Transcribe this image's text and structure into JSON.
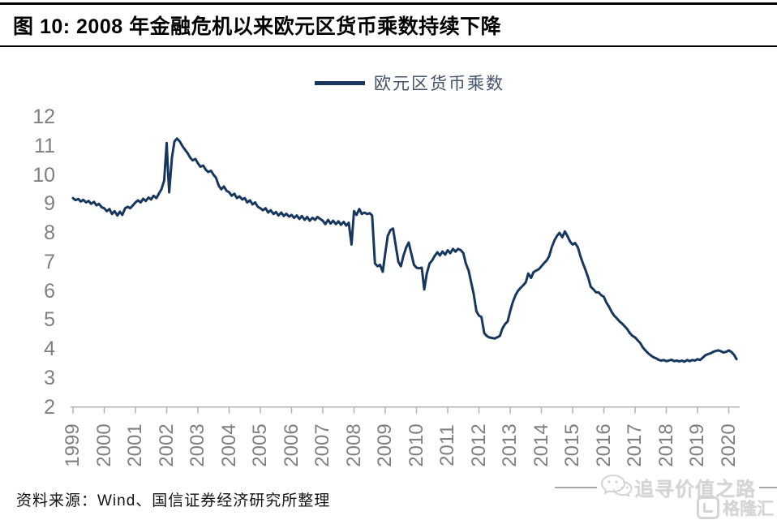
{
  "title": {
    "text": "图 10: 2008 年金融危机以来欧元区货币乘数持续下降"
  },
  "legend": {
    "label": "欧元区货币乘数"
  },
  "source": {
    "text": "资料来源：Wind、国信证券经济研究所整理"
  },
  "watermark": {
    "text": "追寻价值之路",
    "logo_text": "格隆汇"
  },
  "colors": {
    "line": "#17375e",
    "legend_text": "#44546a",
    "axis": "#b3b3b3",
    "tick_label": "#7f7f7f",
    "title_text": "#000000",
    "watermark": "#d4d4d4"
  },
  "chart_data": {
    "type": "line",
    "title": "图 10: 2008 年金融危机以来欧元区货币乘数持续下降",
    "xlabel": "",
    "ylabel": "",
    "legend_position": "top-center",
    "grid": false,
    "xlim": [
      1998.9,
      2020.45
    ],
    "ylim": [
      2,
      12
    ],
    "x_ticks": [
      1999,
      2000,
      2001,
      2002,
      2003,
      2004,
      2005,
      2006,
      2007,
      2008,
      2009,
      2010,
      2011,
      2012,
      2013,
      2014,
      2015,
      2016,
      2017,
      2018,
      2019,
      2020
    ],
    "y_ticks": [
      2,
      3,
      4,
      5,
      6,
      7,
      8,
      9,
      10,
      11,
      12
    ],
    "series": [
      {
        "name": "欧元区货币乘数",
        "points": [
          [
            1999.0,
            9.2
          ],
          [
            1999.08,
            9.13
          ],
          [
            1999.17,
            9.17
          ],
          [
            1999.25,
            9.08
          ],
          [
            1999.33,
            9.14
          ],
          [
            1999.42,
            9.05
          ],
          [
            1999.5,
            9.1
          ],
          [
            1999.58,
            9.0
          ],
          [
            1999.67,
            9.07
          ],
          [
            1999.75,
            8.95
          ],
          [
            1999.83,
            9.0
          ],
          [
            1999.92,
            8.88
          ],
          [
            2000.0,
            8.85
          ],
          [
            2000.08,
            8.75
          ],
          [
            2000.17,
            8.82
          ],
          [
            2000.25,
            8.65
          ],
          [
            2000.33,
            8.75
          ],
          [
            2000.42,
            8.6
          ],
          [
            2000.5,
            8.73
          ],
          [
            2000.58,
            8.62
          ],
          [
            2000.67,
            8.85
          ],
          [
            2000.75,
            8.9
          ],
          [
            2000.83,
            8.85
          ],
          [
            2000.92,
            8.95
          ],
          [
            2001.0,
            9.05
          ],
          [
            2001.08,
            9.12
          ],
          [
            2001.17,
            9.05
          ],
          [
            2001.25,
            9.18
          ],
          [
            2001.33,
            9.1
          ],
          [
            2001.42,
            9.22
          ],
          [
            2001.5,
            9.15
          ],
          [
            2001.58,
            9.28
          ],
          [
            2001.67,
            9.2
          ],
          [
            2001.75,
            9.35
          ],
          [
            2001.83,
            9.5
          ],
          [
            2001.92,
            9.8
          ],
          [
            2002.0,
            11.1
          ],
          [
            2002.04,
            10.2
          ],
          [
            2002.08,
            9.4
          ],
          [
            2002.17,
            10.6
          ],
          [
            2002.25,
            11.15
          ],
          [
            2002.33,
            11.25
          ],
          [
            2002.42,
            11.15
          ],
          [
            2002.5,
            11.0
          ],
          [
            2002.58,
            10.88
          ],
          [
            2002.67,
            10.75
          ],
          [
            2002.75,
            10.6
          ],
          [
            2002.83,
            10.5
          ],
          [
            2002.92,
            10.55
          ],
          [
            2003.0,
            10.4
          ],
          [
            2003.08,
            10.28
          ],
          [
            2003.17,
            10.32
          ],
          [
            2003.25,
            10.18
          ],
          [
            2003.33,
            10.1
          ],
          [
            2003.42,
            10.14
          ],
          [
            2003.5,
            10.0
          ],
          [
            2003.58,
            9.9
          ],
          [
            2003.67,
            9.62
          ],
          [
            2003.75,
            9.5
          ],
          [
            2003.83,
            9.6
          ],
          [
            2003.92,
            9.45
          ],
          [
            2004.0,
            9.4
          ],
          [
            2004.08,
            9.28
          ],
          [
            2004.17,
            9.35
          ],
          [
            2004.25,
            9.2
          ],
          [
            2004.33,
            9.26
          ],
          [
            2004.42,
            9.15
          ],
          [
            2004.5,
            9.2
          ],
          [
            2004.58,
            9.05
          ],
          [
            2004.67,
            9.12
          ],
          [
            2004.75,
            8.98
          ],
          [
            2004.83,
            9.05
          ],
          [
            2004.92,
            8.9
          ],
          [
            2005.0,
            8.85
          ],
          [
            2005.08,
            8.78
          ],
          [
            2005.17,
            8.85
          ],
          [
            2005.25,
            8.7
          ],
          [
            2005.33,
            8.78
          ],
          [
            2005.42,
            8.65
          ],
          [
            2005.5,
            8.72
          ],
          [
            2005.58,
            8.6
          ],
          [
            2005.67,
            8.7
          ],
          [
            2005.75,
            8.58
          ],
          [
            2005.83,
            8.66
          ],
          [
            2005.92,
            8.56
          ],
          [
            2006.0,
            8.62
          ],
          [
            2006.08,
            8.52
          ],
          [
            2006.17,
            8.6
          ],
          [
            2006.25,
            8.48
          ],
          [
            2006.33,
            8.58
          ],
          [
            2006.42,
            8.45
          ],
          [
            2006.5,
            8.55
          ],
          [
            2006.58,
            8.42
          ],
          [
            2006.67,
            8.52
          ],
          [
            2006.75,
            8.45
          ],
          [
            2006.83,
            8.55
          ],
          [
            2006.92,
            8.48
          ],
          [
            2007.0,
            8.42
          ],
          [
            2007.08,
            8.3
          ],
          [
            2007.17,
            8.45
          ],
          [
            2007.25,
            8.32
          ],
          [
            2007.33,
            8.42
          ],
          [
            2007.42,
            8.3
          ],
          [
            2007.5,
            8.4
          ],
          [
            2007.58,
            8.28
          ],
          [
            2007.67,
            8.38
          ],
          [
            2007.75,
            8.25
          ],
          [
            2007.83,
            8.35
          ],
          [
            2007.92,
            7.6
          ],
          [
            2008.0,
            8.75
          ],
          [
            2008.08,
            8.62
          ],
          [
            2008.17,
            8.82
          ],
          [
            2008.25,
            8.65
          ],
          [
            2008.33,
            8.7
          ],
          [
            2008.42,
            8.65
          ],
          [
            2008.5,
            8.68
          ],
          [
            2008.58,
            8.6
          ],
          [
            2008.67,
            6.95
          ],
          [
            2008.75,
            6.85
          ],
          [
            2008.83,
            6.9
          ],
          [
            2008.92,
            6.66
          ],
          [
            2009.0,
            7.3
          ],
          [
            2009.08,
            7.9
          ],
          [
            2009.17,
            8.1
          ],
          [
            2009.25,
            8.15
          ],
          [
            2009.33,
            7.6
          ],
          [
            2009.42,
            7.0
          ],
          [
            2009.5,
            6.85
          ],
          [
            2009.58,
            7.2
          ],
          [
            2009.67,
            7.5
          ],
          [
            2009.75,
            7.67
          ],
          [
            2009.83,
            7.3
          ],
          [
            2009.92,
            6.9
          ],
          [
            2010.0,
            6.8
          ],
          [
            2010.08,
            6.78
          ],
          [
            2010.17,
            6.8
          ],
          [
            2010.25,
            6.05
          ],
          [
            2010.33,
            6.6
          ],
          [
            2010.42,
            6.95
          ],
          [
            2010.5,
            7.05
          ],
          [
            2010.58,
            7.2
          ],
          [
            2010.67,
            7.33
          ],
          [
            2010.75,
            7.22
          ],
          [
            2010.83,
            7.36
          ],
          [
            2010.92,
            7.25
          ],
          [
            2011.0,
            7.4
          ],
          [
            2011.08,
            7.3
          ],
          [
            2011.17,
            7.45
          ],
          [
            2011.25,
            7.35
          ],
          [
            2011.33,
            7.45
          ],
          [
            2011.42,
            7.4
          ],
          [
            2011.5,
            7.3
          ],
          [
            2011.58,
            6.95
          ],
          [
            2011.67,
            6.7
          ],
          [
            2011.75,
            6.3
          ],
          [
            2011.83,
            5.9
          ],
          [
            2011.92,
            5.3
          ],
          [
            2012.0,
            5.15
          ],
          [
            2012.08,
            5.1
          ],
          [
            2012.17,
            4.55
          ],
          [
            2012.25,
            4.45
          ],
          [
            2012.33,
            4.4
          ],
          [
            2012.42,
            4.38
          ],
          [
            2012.5,
            4.36
          ],
          [
            2012.58,
            4.4
          ],
          [
            2012.67,
            4.45
          ],
          [
            2012.75,
            4.7
          ],
          [
            2012.83,
            4.85
          ],
          [
            2012.92,
            4.95
          ],
          [
            2013.0,
            5.3
          ],
          [
            2013.08,
            5.6
          ],
          [
            2013.17,
            5.85
          ],
          [
            2013.25,
            6.0
          ],
          [
            2013.33,
            6.1
          ],
          [
            2013.42,
            6.2
          ],
          [
            2013.5,
            6.3
          ],
          [
            2013.58,
            6.6
          ],
          [
            2013.67,
            6.45
          ],
          [
            2013.75,
            6.65
          ],
          [
            2013.83,
            6.7
          ],
          [
            2013.92,
            6.75
          ],
          [
            2014.0,
            6.85
          ],
          [
            2014.08,
            6.95
          ],
          [
            2014.17,
            7.05
          ],
          [
            2014.25,
            7.2
          ],
          [
            2014.33,
            7.5
          ],
          [
            2014.42,
            7.75
          ],
          [
            2014.5,
            7.9
          ],
          [
            2014.58,
            8.0
          ],
          [
            2014.67,
            7.85
          ],
          [
            2014.75,
            8.05
          ],
          [
            2014.83,
            7.9
          ],
          [
            2014.92,
            7.7
          ],
          [
            2015.0,
            7.6
          ],
          [
            2015.08,
            7.65
          ],
          [
            2015.17,
            7.5
          ],
          [
            2015.25,
            7.2
          ],
          [
            2015.33,
            6.95
          ],
          [
            2015.42,
            6.7
          ],
          [
            2015.5,
            6.45
          ],
          [
            2015.58,
            6.15
          ],
          [
            2015.67,
            6.05
          ],
          [
            2015.75,
            5.95
          ],
          [
            2015.83,
            5.95
          ],
          [
            2015.92,
            5.85
          ],
          [
            2016.0,
            5.8
          ],
          [
            2016.08,
            5.6
          ],
          [
            2016.17,
            5.45
          ],
          [
            2016.25,
            5.28
          ],
          [
            2016.33,
            5.15
          ],
          [
            2016.42,
            5.05
          ],
          [
            2016.5,
            4.95
          ],
          [
            2016.58,
            4.88
          ],
          [
            2016.67,
            4.78
          ],
          [
            2016.75,
            4.68
          ],
          [
            2016.83,
            4.55
          ],
          [
            2016.92,
            4.45
          ],
          [
            2017.0,
            4.4
          ],
          [
            2017.08,
            4.3
          ],
          [
            2017.17,
            4.2
          ],
          [
            2017.25,
            4.05
          ],
          [
            2017.33,
            3.95
          ],
          [
            2017.42,
            3.85
          ],
          [
            2017.5,
            3.78
          ],
          [
            2017.58,
            3.72
          ],
          [
            2017.67,
            3.68
          ],
          [
            2017.75,
            3.63
          ],
          [
            2017.83,
            3.6
          ],
          [
            2017.92,
            3.62
          ],
          [
            2018.0,
            3.58
          ],
          [
            2018.08,
            3.6
          ],
          [
            2018.17,
            3.63
          ],
          [
            2018.25,
            3.58
          ],
          [
            2018.33,
            3.6
          ],
          [
            2018.42,
            3.57
          ],
          [
            2018.5,
            3.6
          ],
          [
            2018.58,
            3.56
          ],
          [
            2018.67,
            3.62
          ],
          [
            2018.75,
            3.58
          ],
          [
            2018.83,
            3.62
          ],
          [
            2018.92,
            3.6
          ],
          [
            2019.0,
            3.65
          ],
          [
            2019.08,
            3.62
          ],
          [
            2019.17,
            3.7
          ],
          [
            2019.25,
            3.78
          ],
          [
            2019.33,
            3.82
          ],
          [
            2019.42,
            3.85
          ],
          [
            2019.5,
            3.9
          ],
          [
            2019.58,
            3.93
          ],
          [
            2019.67,
            3.95
          ],
          [
            2019.75,
            3.92
          ],
          [
            2019.83,
            3.88
          ],
          [
            2019.92,
            3.9
          ],
          [
            2020.0,
            3.95
          ],
          [
            2020.08,
            3.9
          ],
          [
            2020.17,
            3.8
          ],
          [
            2020.25,
            3.65
          ]
        ]
      }
    ]
  }
}
